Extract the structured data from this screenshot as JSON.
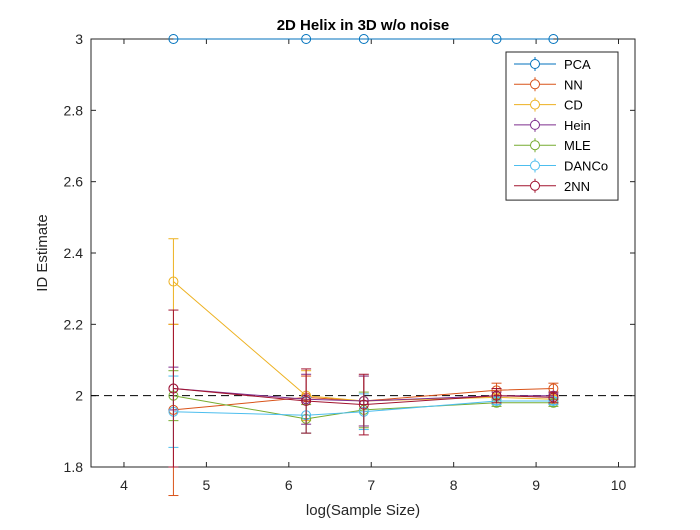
{
  "chart_data": {
    "type": "line",
    "title": "2D Helix in 3D w/o noise",
    "xlabel": "log(Sample Size)",
    "ylabel": "ID Estimate",
    "xlim": [
      3.6,
      10.2
    ],
    "ylim": [
      1.8,
      3.0
    ],
    "xticks": [
      4,
      5,
      6,
      7,
      8,
      9,
      10
    ],
    "yticks": [
      1.8,
      2.0,
      2.2,
      2.4,
      2.6,
      2.8,
      3.0
    ],
    "xtick_labels": [
      "4",
      "5",
      "6",
      "7",
      "8",
      "9",
      "10"
    ],
    "ytick_labels": [
      "1.8",
      "2",
      "2.2",
      "2.4",
      "2.6",
      "2.8",
      "3"
    ],
    "grid": false,
    "legend_position": "top-right",
    "reference_line": {
      "y": 2.0,
      "style": "dashed",
      "color": "#000000"
    },
    "x": [
      4.6,
      6.21,
      6.91,
      8.52,
      9.21
    ],
    "series": [
      {
        "name": "PCA",
        "color": "#0072BD",
        "values": [
          3.0,
          3.0,
          3.0,
          3.0,
          3.0
        ],
        "errors": [
          0,
          0,
          0,
          0,
          0
        ]
      },
      {
        "name": "NN",
        "color": "#D95319",
        "values": [
          1.96,
          1.995,
          1.985,
          2.015,
          2.02
        ],
        "errors": [
          0.24,
          0.06,
          0.07,
          0.02,
          0.015
        ]
      },
      {
        "name": "CD",
        "color": "#EDB120",
        "values": [
          2.32,
          2.0,
          1.985,
          1.995,
          1.99
        ],
        "errors": [
          0.12,
          0.07,
          0.07,
          0.015,
          0.01
        ]
      },
      {
        "name": "Hein",
        "color": "#7E2F8E",
        "values": [
          2.02,
          1.99,
          1.985,
          2.0,
          2.0
        ],
        "errors": [
          0.06,
          0.07,
          0.07,
          0.01,
          0.01
        ]
      },
      {
        "name": "MLE",
        "color": "#77AC30",
        "values": [
          2.0,
          1.935,
          1.96,
          1.98,
          1.98
        ],
        "errors": [
          0.07,
          0.04,
          0.05,
          0.01,
          0.01
        ]
      },
      {
        "name": "DANCo",
        "color": "#4DBEEE",
        "values": [
          1.955,
          1.945,
          1.955,
          1.985,
          1.985
        ],
        "errors": [
          0.1,
          0.05,
          0.05,
          0.01,
          0.01
        ]
      },
      {
        "name": "2NN",
        "color": "#A2142F",
        "values": [
          2.02,
          1.985,
          1.975,
          2.0,
          1.995
        ],
        "errors": [
          0.22,
          0.09,
          0.085,
          0.02,
          0.015
        ]
      }
    ]
  }
}
